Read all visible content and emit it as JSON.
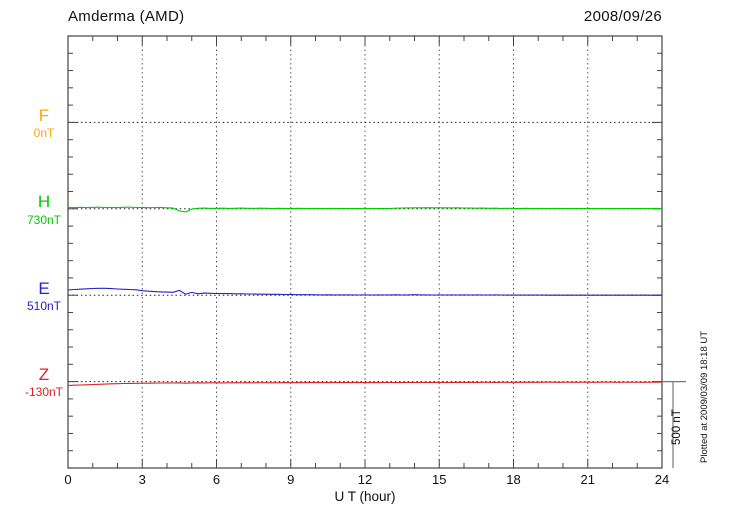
{
  "header": {
    "station_title": "Amderma (AMD)",
    "date": "2008/09/26"
  },
  "footer": {
    "plotted_note": "Plotted at 2009/03/09 18:18 UT"
  },
  "chart_data": {
    "type": "line",
    "title": "Amderma (AMD) magnetogram",
    "date": "2008/09/26",
    "xlabel": "U T (hour)",
    "x_range": [
      0,
      24
    ],
    "x_major_ticks": [
      0,
      3,
      6,
      9,
      12,
      15,
      18,
      21,
      24
    ],
    "x_minor_step_hours": 1,
    "x_step_hours": 0.25,
    "grid": "dotted vertical at 3h intervals, dotted horizontal at each trace baseline",
    "scale_bar": {
      "label": "500 nT",
      "nT": 500
    },
    "colors": {
      "axis": "#444444",
      "grid": "#555555",
      "baseline_dots": "#222222",
      "scale_bar": "#777777"
    },
    "series": [
      {
        "name": "F",
        "baseline_label": "0nT",
        "baseline_nT": 0,
        "color": "#FFA500",
        "drawn": false,
        "offsets_nT": [
          0,
          0,
          0,
          0,
          0,
          0,
          0,
          0,
          0,
          0,
          0,
          0,
          0,
          0,
          0,
          0,
          0,
          0,
          0,
          0,
          0,
          0,
          0,
          0,
          0,
          0,
          0,
          0,
          0,
          0,
          0,
          0,
          0,
          0,
          0,
          0,
          0,
          0,
          0,
          0,
          0,
          0,
          0,
          0,
          0,
          0,
          0,
          0,
          0,
          0,
          0,
          0,
          0,
          0,
          0,
          0,
          0,
          0,
          0,
          0,
          0,
          0,
          0,
          0,
          0,
          0,
          0,
          0,
          0,
          0,
          0,
          0,
          0,
          0,
          0,
          0,
          0,
          0,
          0,
          0,
          0,
          0,
          0,
          0,
          0,
          0,
          0,
          0,
          0,
          0,
          0,
          0,
          0,
          0,
          0,
          0,
          0
        ]
      },
      {
        "name": "H",
        "baseline_label": "730nT",
        "baseline_nT": 730,
        "color": "#00CC00",
        "drawn": true,
        "offsets_nT": [
          8,
          7.5,
          8.5,
          7,
          8,
          9,
          7.5,
          8,
          7,
          8.5,
          9,
          7.5,
          8,
          6.5,
          7.5,
          8,
          6,
          4,
          -12,
          -18,
          -2,
          3,
          4,
          2.5,
          3,
          3.5,
          2.5,
          3,
          4,
          3,
          2.5,
          3.5,
          3,
          2,
          3,
          2.5,
          2,
          3,
          2.5,
          2,
          2.5,
          1.5,
          2,
          2.5,
          1.5,
          2,
          1,
          2,
          2.5,
          1.5,
          2,
          1,
          2,
          3.5,
          4.5,
          5,
          5.5,
          6,
          6.5,
          6,
          5.5,
          6,
          5,
          5.5,
          4.5,
          4,
          3.5,
          4,
          3,
          3.5,
          2.5,
          3,
          2.5,
          2,
          3,
          2,
          2.5,
          1.5,
          2,
          2.5,
          1.5,
          2,
          1,
          1.5,
          2,
          1,
          2,
          1.5,
          1,
          2,
          1.5,
          2,
          1,
          1.5,
          2,
          2.5,
          2
        ]
      },
      {
        "name": "E",
        "baseline_label": "510nT",
        "baseline_nT": 510,
        "color": "#2222CC",
        "drawn": true,
        "offsets_nT": [
          30,
          33,
          35,
          37,
          39,
          40,
          40,
          38,
          36,
          34,
          33,
          31,
          26,
          23,
          21,
          19,
          18,
          17,
          28,
          6,
          16,
          8,
          12,
          11,
          10,
          9,
          9,
          8,
          8,
          7,
          7,
          6,
          6,
          5,
          5,
          4,
          4,
          3,
          3,
          3,
          2.5,
          2,
          2.5,
          2,
          1.5,
          2,
          1.5,
          1,
          1.5,
          1,
          2,
          1,
          1.5,
          2.5,
          1,
          2,
          3,
          1.5,
          2,
          1,
          1.5,
          1,
          1.5,
          1,
          2,
          1,
          1.5,
          1,
          1,
          1.5,
          1,
          0.5,
          1,
          0.5,
          1,
          0.5,
          1,
          0.5,
          0,
          0.5,
          0,
          0.5,
          0,
          0.5,
          0,
          0.5,
          0,
          0.5,
          0,
          0.5,
          0,
          0.5,
          0,
          0.5,
          0,
          0.5,
          0
        ]
      },
      {
        "name": "Z",
        "baseline_label": "-130nT",
        "baseline_nT": -130,
        "color": "#DD2222",
        "drawn": true,
        "offsets_nT": [
          -23,
          -21,
          -19.5,
          -18.5,
          -17,
          -15.5,
          -14.5,
          -13,
          -12,
          -11,
          -10.5,
          -10,
          -9,
          -9,
          -8.5,
          -8,
          -7.5,
          -8,
          -7,
          -9,
          -7.5,
          -7,
          -7.5,
          -7,
          -7,
          -7.5,
          -7,
          -6.5,
          -7,
          -6.5,
          -7,
          -6.5,
          -6.5,
          -7,
          -6.5,
          -6,
          -6.5,
          -6,
          -6.5,
          -6,
          -6,
          -5.5,
          -6,
          -5.5,
          -5.5,
          -6,
          -5.5,
          -5,
          -5.5,
          -5,
          -5.5,
          -5,
          -5,
          -5.5,
          -5,
          -4.5,
          -5,
          -4.5,
          -5,
          -4.5,
          -4.5,
          -5,
          -4.5,
          -4,
          -4.5,
          -4,
          -4.5,
          -4,
          -4,
          -4.5,
          -4,
          -4,
          -4,
          -3.5,
          -4,
          -3.5,
          -4,
          -3.5,
          -3.5,
          -4,
          -3.5,
          -3.5,
          -4,
          -3.5,
          -3.5,
          -4,
          -3.5,
          -3.5,
          -3.5,
          -4,
          -3.5,
          -3.5,
          -3.5,
          -4,
          -3.5,
          -3.5,
          -3.5
        ]
      }
    ]
  }
}
